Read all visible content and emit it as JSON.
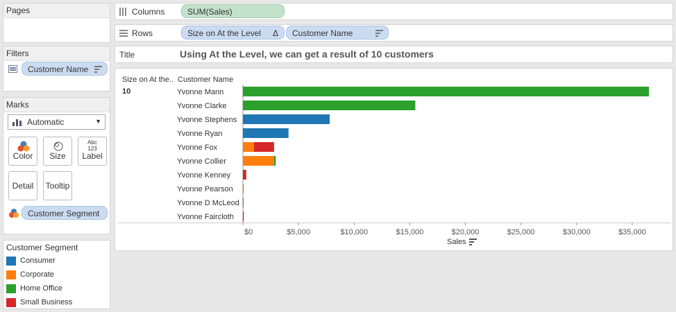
{
  "pages": {
    "title": "Pages"
  },
  "filters": {
    "title": "Filters",
    "pill": "Customer Name"
  },
  "marks": {
    "title": "Marks",
    "type": "Automatic",
    "buttons": {
      "color": "Color",
      "size": "Size",
      "label": "Label",
      "detail": "Detail",
      "tooltip": "Tooltip",
      "label_icon": "Abc\n123"
    },
    "pill": "Customer Segment"
  },
  "legend": {
    "title": "Customer Segment",
    "items": [
      {
        "label": "Consumer",
        "color": "#1f77b4"
      },
      {
        "label": "Corporate",
        "color": "#ff7f0e"
      },
      {
        "label": "Home Office",
        "color": "#2ca02c"
      },
      {
        "label": "Small Business",
        "color": "#d62728"
      }
    ]
  },
  "columns": {
    "label": "Columns",
    "pill": "SUM(Sales)"
  },
  "rows": {
    "label": "Rows",
    "pill1": "Size on At the Level",
    "pill1_icon": "Δ",
    "pill2": "Customer Name"
  },
  "title_bar": {
    "label": "Title",
    "text": "Using At the Level, we can get a result of 10 customers"
  },
  "view": {
    "header_size": "Size on At the..",
    "header_customer": "Customer Name",
    "size_value": "10"
  },
  "chart_data": {
    "type": "bar",
    "orientation": "horizontal",
    "stacked": true,
    "categories": [
      "Yvonne Mann",
      "Yvonne Clarke",
      "Yvonne Stephens",
      "Yvonne Ryan",
      "Yvonne Fox",
      "Yvonne Collier",
      "Yvonne Kenney",
      "Yvonne Pearson",
      "Yvonne D McLeod",
      "Yvonne Faircloth"
    ],
    "series": [
      {
        "name": "Consumer",
        "color": "#1f77b4",
        "values": [
          0,
          0,
          7800,
          4100,
          0,
          0,
          0,
          0,
          0,
          0
        ]
      },
      {
        "name": "Corporate",
        "color": "#ff7f0e",
        "values": [
          0,
          0,
          0,
          0,
          1000,
          2800,
          0,
          80,
          0,
          0
        ]
      },
      {
        "name": "Home Office",
        "color": "#2ca02c",
        "values": [
          36500,
          15500,
          0,
          0,
          0,
          150,
          0,
          0,
          60,
          0
        ]
      },
      {
        "name": "Small Business",
        "color": "#d62728",
        "values": [
          0,
          0,
          0,
          0,
          1800,
          0,
          300,
          0,
          0,
          80
        ]
      }
    ],
    "x_ticks": [
      "$0",
      "$5,000",
      "$10,000",
      "$15,000",
      "$20,000",
      "$25,000",
      "$30,000",
      "$35,000"
    ],
    "x_tick_values": [
      0,
      5000,
      10000,
      15000,
      20000,
      25000,
      30000,
      35000
    ],
    "xlim": [
      0,
      38500
    ],
    "xlabel": "Sales"
  }
}
